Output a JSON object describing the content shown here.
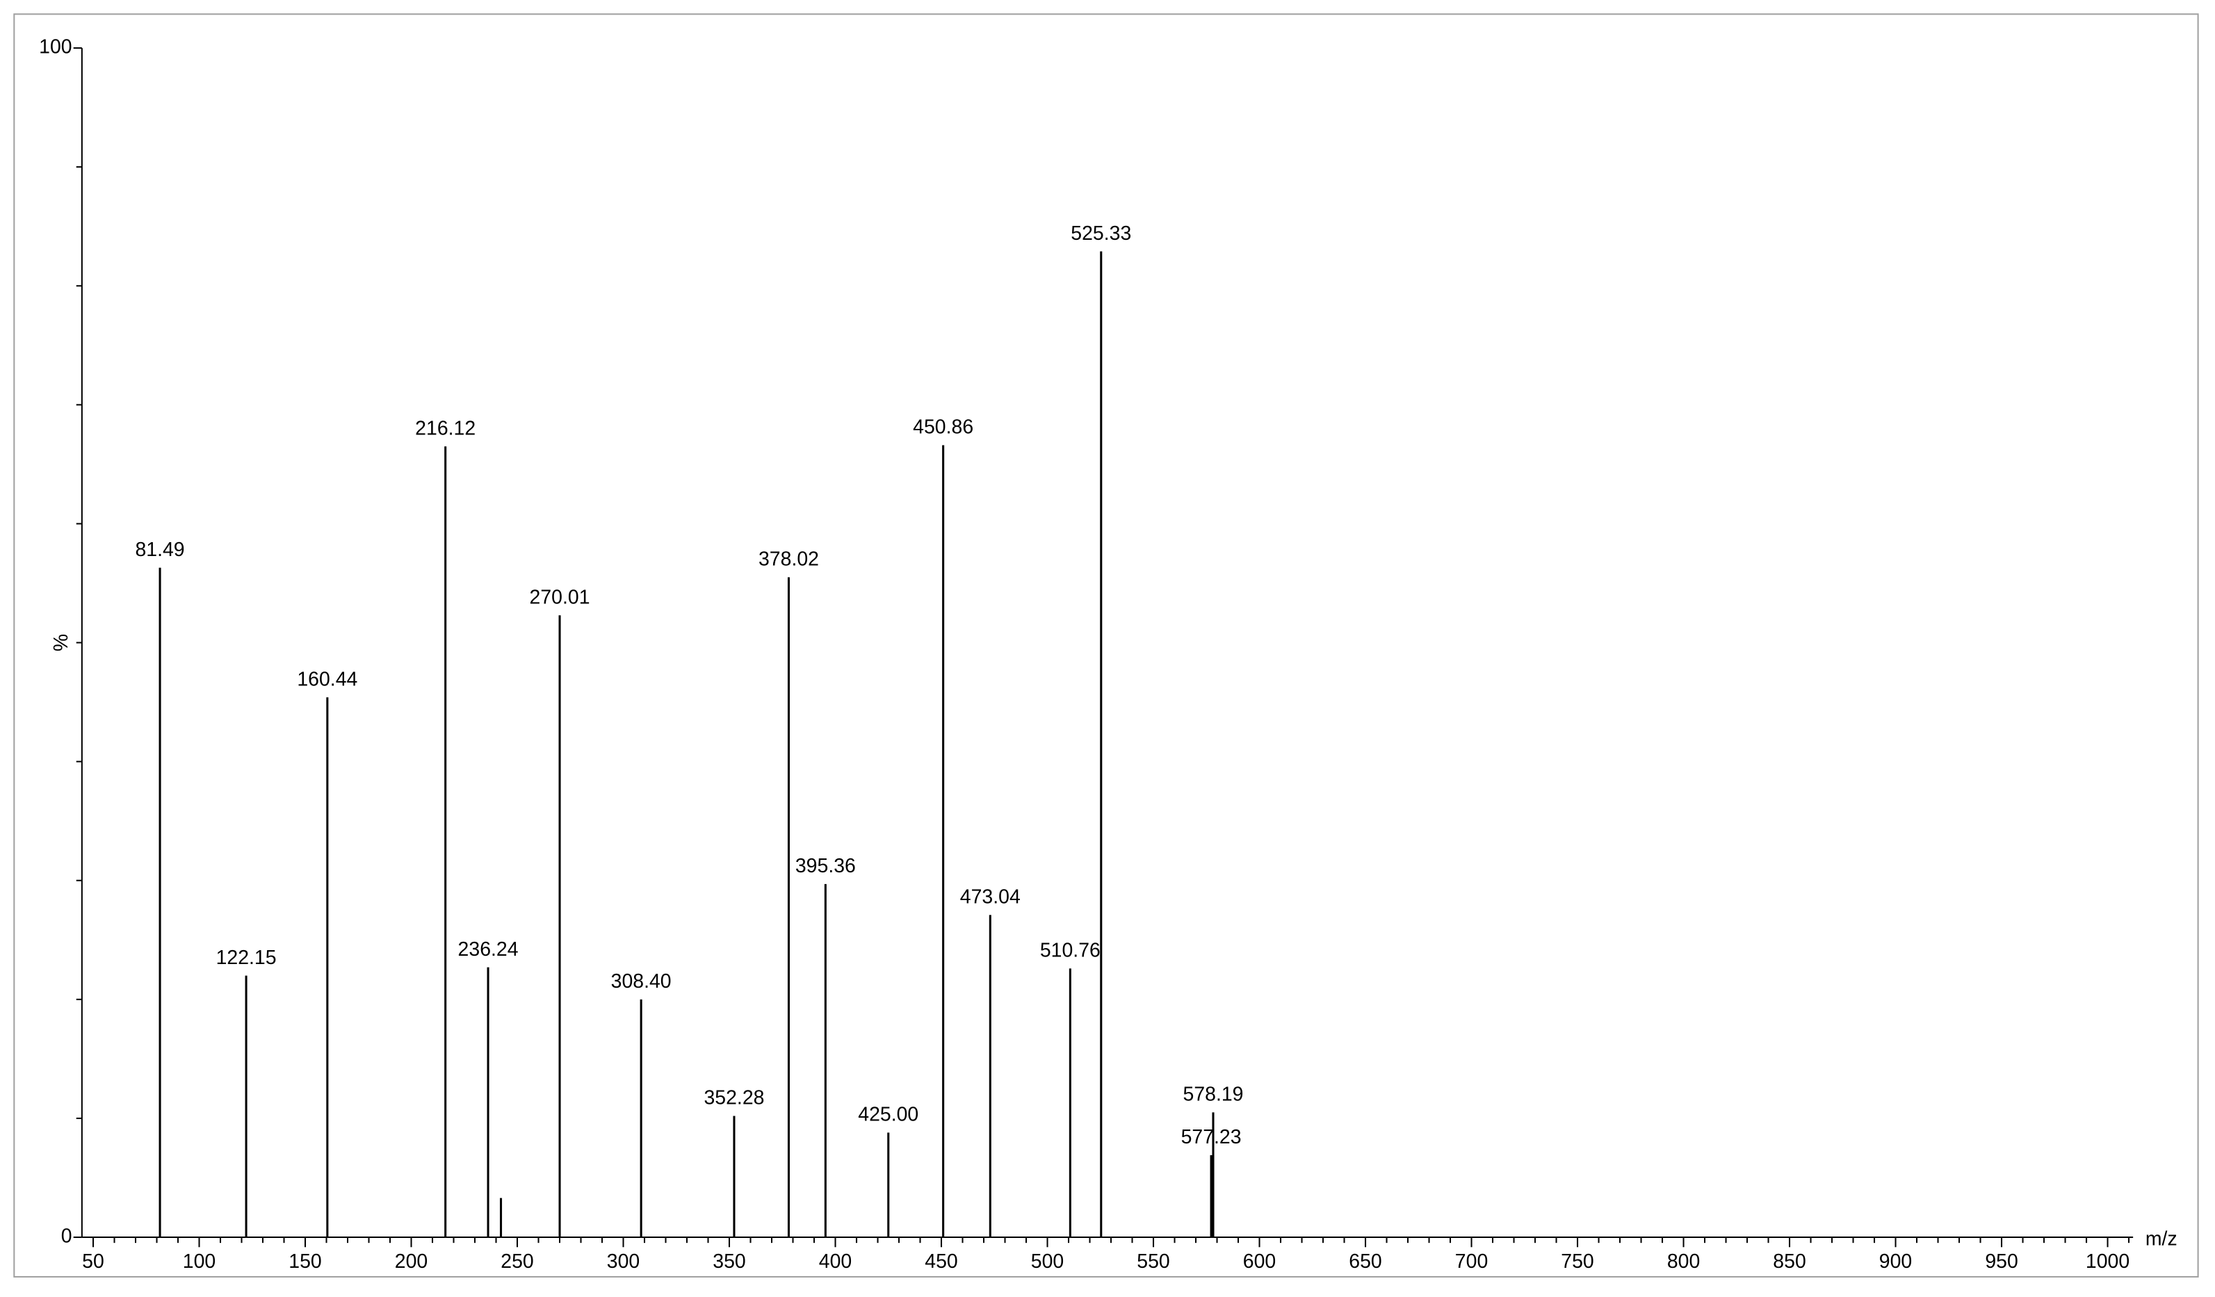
{
  "chart_data": {
    "type": "spectrum",
    "x_label": "m/z",
    "y_label": "%",
    "x": [
      81.49,
      122.15,
      160.44,
      216.12,
      236.24,
      242.3,
      270.01,
      308.4,
      352.28,
      378.02,
      395.36,
      425.0,
      450.86,
      473.04,
      510.76,
      525.33,
      577.23,
      578.19
    ],
    "x_labels": [
      "81.49",
      "122.15",
      "160.44",
      "216.12",
      "236.24",
      null,
      "270.01",
      "308.40",
      "352.28",
      "378.02",
      "395.36",
      "425.00",
      "450.86",
      "473.04",
      "510.76",
      "525.33",
      "577.23",
      "578.19"
    ],
    "values": [
      56.3,
      22.0,
      45.4,
      66.5,
      22.7,
      3.3,
      52.3,
      20.0,
      10.2,
      55.5,
      29.7,
      8.8,
      66.6,
      27.1,
      22.6,
      82.9,
      6.9,
      10.5
    ],
    "color": "#000000",
    "xlim": [
      44.7,
      1012
    ],
    "xticks": [
      50,
      100,
      150,
      200,
      250,
      300,
      350,
      400,
      450,
      500,
      550,
      600,
      650,
      700,
      750,
      800,
      850,
      900,
      950,
      1000
    ],
    "xminorticks": [
      60,
      70,
      80,
      90,
      110,
      120,
      130,
      140,
      160,
      170,
      180,
      190,
      210,
      220,
      230,
      240,
      260,
      270,
      280,
      290,
      310,
      320,
      330,
      340,
      360,
      370,
      380,
      390,
      410,
      420,
      430,
      440,
      460,
      470,
      480,
      490,
      510,
      520,
      530,
      540,
      560,
      570,
      580,
      590,
      610,
      620,
      630,
      640,
      660,
      670,
      680,
      690,
      710,
      720,
      730,
      740,
      760,
      770,
      780,
      790,
      810,
      820,
      830,
      840,
      860,
      870,
      880,
      890,
      910,
      920,
      930,
      940,
      960,
      970,
      980,
      990,
      1010
    ],
    "ylim": [
      0,
      100
    ],
    "yticks": [
      0,
      100
    ],
    "yminorticks": [
      10,
      20,
      30,
      40,
      50,
      60,
      70,
      80,
      90
    ]
  }
}
